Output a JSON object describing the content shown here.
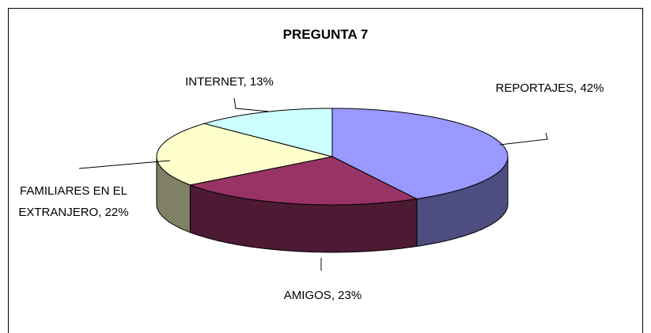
{
  "chart_data": {
    "type": "pie3d",
    "title": "PREGUNTA 7",
    "categories": [
      "REPORTAJES",
      "AMIGOS",
      "FAMILIARES EN EL EXTRANJERO",
      "INTERNET"
    ],
    "values": [
      42,
      23,
      22,
      13
    ],
    "value_labels": [
      "42%",
      "23%",
      "22%",
      "13%"
    ],
    "colors": [
      "#9999ff",
      "#993366",
      "#ffffcc",
      "#ccffff"
    ]
  }
}
